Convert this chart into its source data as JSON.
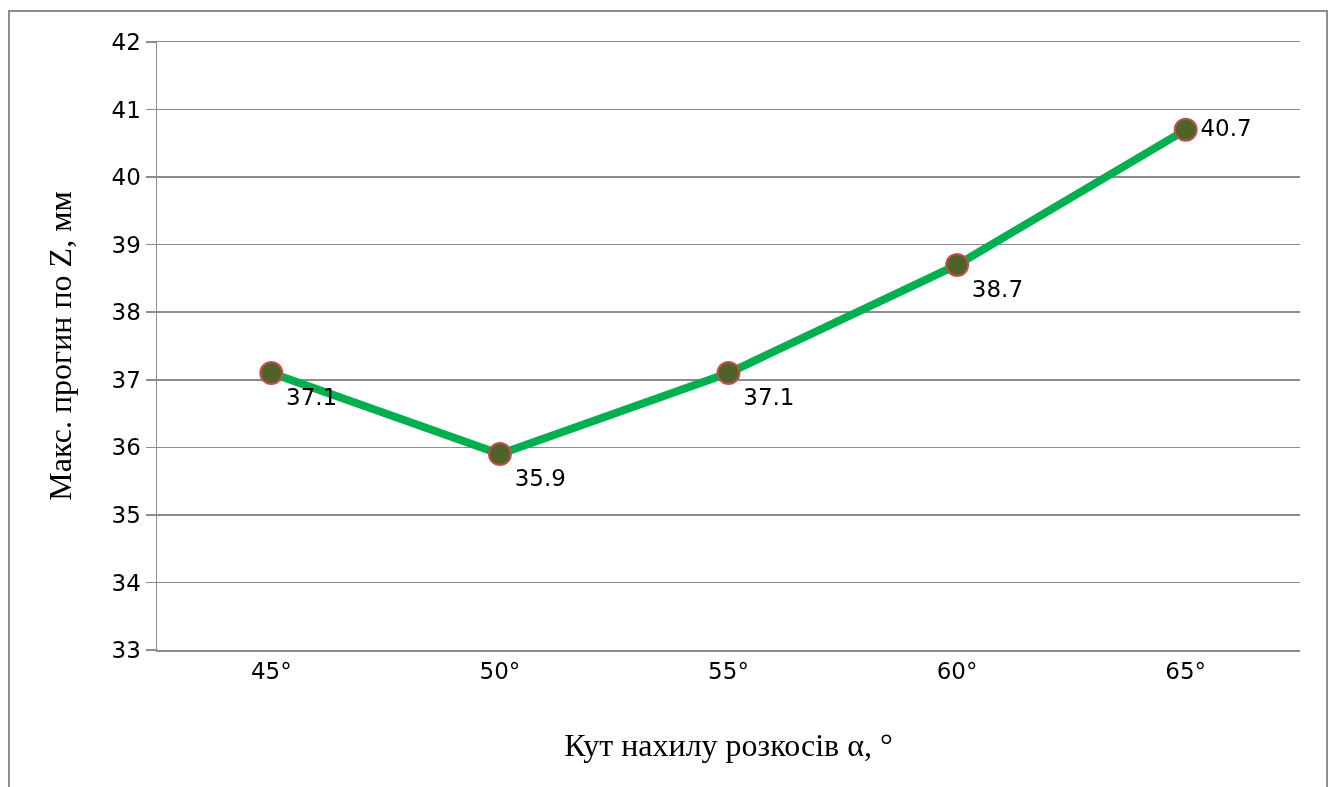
{
  "chart_data": {
    "type": "line",
    "xlabel": "Кут нахилу розкосів α, °",
    "ylabel": "Макс. прогин по Z, мм",
    "categories": [
      "45°",
      "50°",
      "55°",
      "60°",
      "65°"
    ],
    "series": [
      {
        "color": "#00b050",
        "values": [
          37.1,
          35.9,
          37.1,
          38.7,
          40.7
        ]
      }
    ],
    "ylim": [
      33,
      42
    ],
    "yticks": [
      33,
      34,
      35,
      36,
      37,
      38,
      39,
      40,
      41,
      42
    ],
    "grid": "y",
    "marker": "circle",
    "line_style": "solid",
    "data_labels": true
  }
}
